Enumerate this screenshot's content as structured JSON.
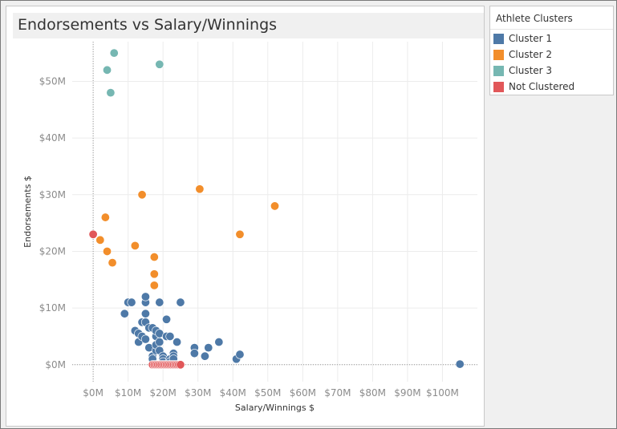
{
  "title": "Endorsements vs Salary/Winnings",
  "legend": {
    "title": "Athlete Clusters",
    "items": [
      {
        "label": "Cluster 1",
        "color": "#4e79a7"
      },
      {
        "label": "Cluster 2",
        "color": "#f28e2b"
      },
      {
        "label": "Cluster 3",
        "color": "#76b7b2"
      },
      {
        "label": "Not Clustered",
        "color": "#e15759"
      }
    ]
  },
  "chart_data": {
    "type": "scatter",
    "title": "Endorsements vs Salary/Winnings",
    "xlabel": "Salary/Winnings $",
    "ylabel": "Endorsements $",
    "x_unit": "millions USD",
    "y_unit": "millions USD",
    "xlim": [
      -6,
      110
    ],
    "ylim": [
      -3,
      57
    ],
    "x_ticks": [
      {
        "value": 0,
        "label": "$0M"
      },
      {
        "value": 10,
        "label": "$10M"
      },
      {
        "value": 20,
        "label": "$20M"
      },
      {
        "value": 30,
        "label": "$30M"
      },
      {
        "value": 40,
        "label": "$40M"
      },
      {
        "value": 50,
        "label": "$50M"
      },
      {
        "value": 60,
        "label": "$60M"
      },
      {
        "value": 70,
        "label": "$70M"
      },
      {
        "value": 80,
        "label": "$80M"
      },
      {
        "value": 90,
        "label": "$90M"
      },
      {
        "value": 100,
        "label": "$100M"
      }
    ],
    "y_ticks": [
      {
        "value": 0,
        "label": "$0M"
      },
      {
        "value": 10,
        "label": "$10M"
      },
      {
        "value": 20,
        "label": "$20M"
      },
      {
        "value": 30,
        "label": "$30M"
      },
      {
        "value": 40,
        "label": "$40M"
      },
      {
        "value": 50,
        "label": "$50M"
      }
    ],
    "grid": true,
    "legend_position": "right",
    "series": [
      {
        "name": "Cluster 1",
        "color": "#4e79a7",
        "points": [
          [
            9,
            9
          ],
          [
            10,
            11
          ],
          [
            11,
            11
          ],
          [
            12,
            6
          ],
          [
            13,
            5.5
          ],
          [
            13,
            4
          ],
          [
            14,
            5
          ],
          [
            14,
            7.5
          ],
          [
            15,
            7.5
          ],
          [
            15,
            4.5
          ],
          [
            15,
            9
          ],
          [
            15,
            11
          ],
          [
            15,
            12
          ],
          [
            16,
            3
          ],
          [
            16,
            6.5
          ],
          [
            17,
            6.5
          ],
          [
            17,
            1.5
          ],
          [
            17,
            1
          ],
          [
            18,
            2.5
          ],
          [
            18,
            3.5
          ],
          [
            18,
            5
          ],
          [
            18,
            6
          ],
          [
            19,
            11
          ],
          [
            19,
            5.5
          ],
          [
            19,
            4
          ],
          [
            19,
            2.5
          ],
          [
            20,
            1.5
          ],
          [
            20,
            1
          ],
          [
            20,
            0.5
          ],
          [
            21,
            5
          ],
          [
            21,
            8
          ],
          [
            22,
            5
          ],
          [
            22,
            1
          ],
          [
            22,
            0.5
          ],
          [
            23,
            2
          ],
          [
            23,
            1.5
          ],
          [
            23,
            1
          ],
          [
            24,
            4
          ],
          [
            25,
            11
          ],
          [
            29,
            3
          ],
          [
            29,
            2
          ],
          [
            32,
            1.5
          ],
          [
            33,
            3
          ],
          [
            36,
            4
          ],
          [
            41,
            1
          ],
          [
            42,
            1.8
          ],
          [
            105,
            0.1
          ]
        ]
      },
      {
        "name": "Cluster 2",
        "color": "#f28e2b",
        "points": [
          [
            2,
            22
          ],
          [
            3.5,
            26
          ],
          [
            4,
            20
          ],
          [
            5.5,
            18
          ],
          [
            12,
            21
          ],
          [
            14,
            30
          ],
          [
            17.5,
            19
          ],
          [
            17.5,
            16
          ],
          [
            17.5,
            14
          ],
          [
            30.5,
            31
          ],
          [
            42,
            23
          ],
          [
            52,
            28
          ]
        ]
      },
      {
        "name": "Cluster 3",
        "color": "#76b7b2",
        "points": [
          [
            4,
            52
          ],
          [
            5,
            48
          ],
          [
            6,
            55
          ],
          [
            19,
            53
          ]
        ]
      },
      {
        "name": "Not Clustered",
        "color": "#e15759",
        "points": [
          [
            0,
            23
          ],
          [
            17,
            0
          ],
          [
            17.5,
            0
          ],
          [
            18,
            0
          ],
          [
            18.5,
            0
          ],
          [
            19,
            0
          ],
          [
            19.5,
            0
          ],
          [
            20,
            0
          ],
          [
            20.5,
            0
          ],
          [
            21,
            0
          ],
          [
            21.5,
            0
          ],
          [
            22,
            0
          ],
          [
            22.5,
            0
          ],
          [
            23,
            0
          ],
          [
            23.5,
            0
          ],
          [
            24,
            0
          ],
          [
            24.5,
            0
          ],
          [
            25,
            0
          ]
        ]
      }
    ]
  }
}
